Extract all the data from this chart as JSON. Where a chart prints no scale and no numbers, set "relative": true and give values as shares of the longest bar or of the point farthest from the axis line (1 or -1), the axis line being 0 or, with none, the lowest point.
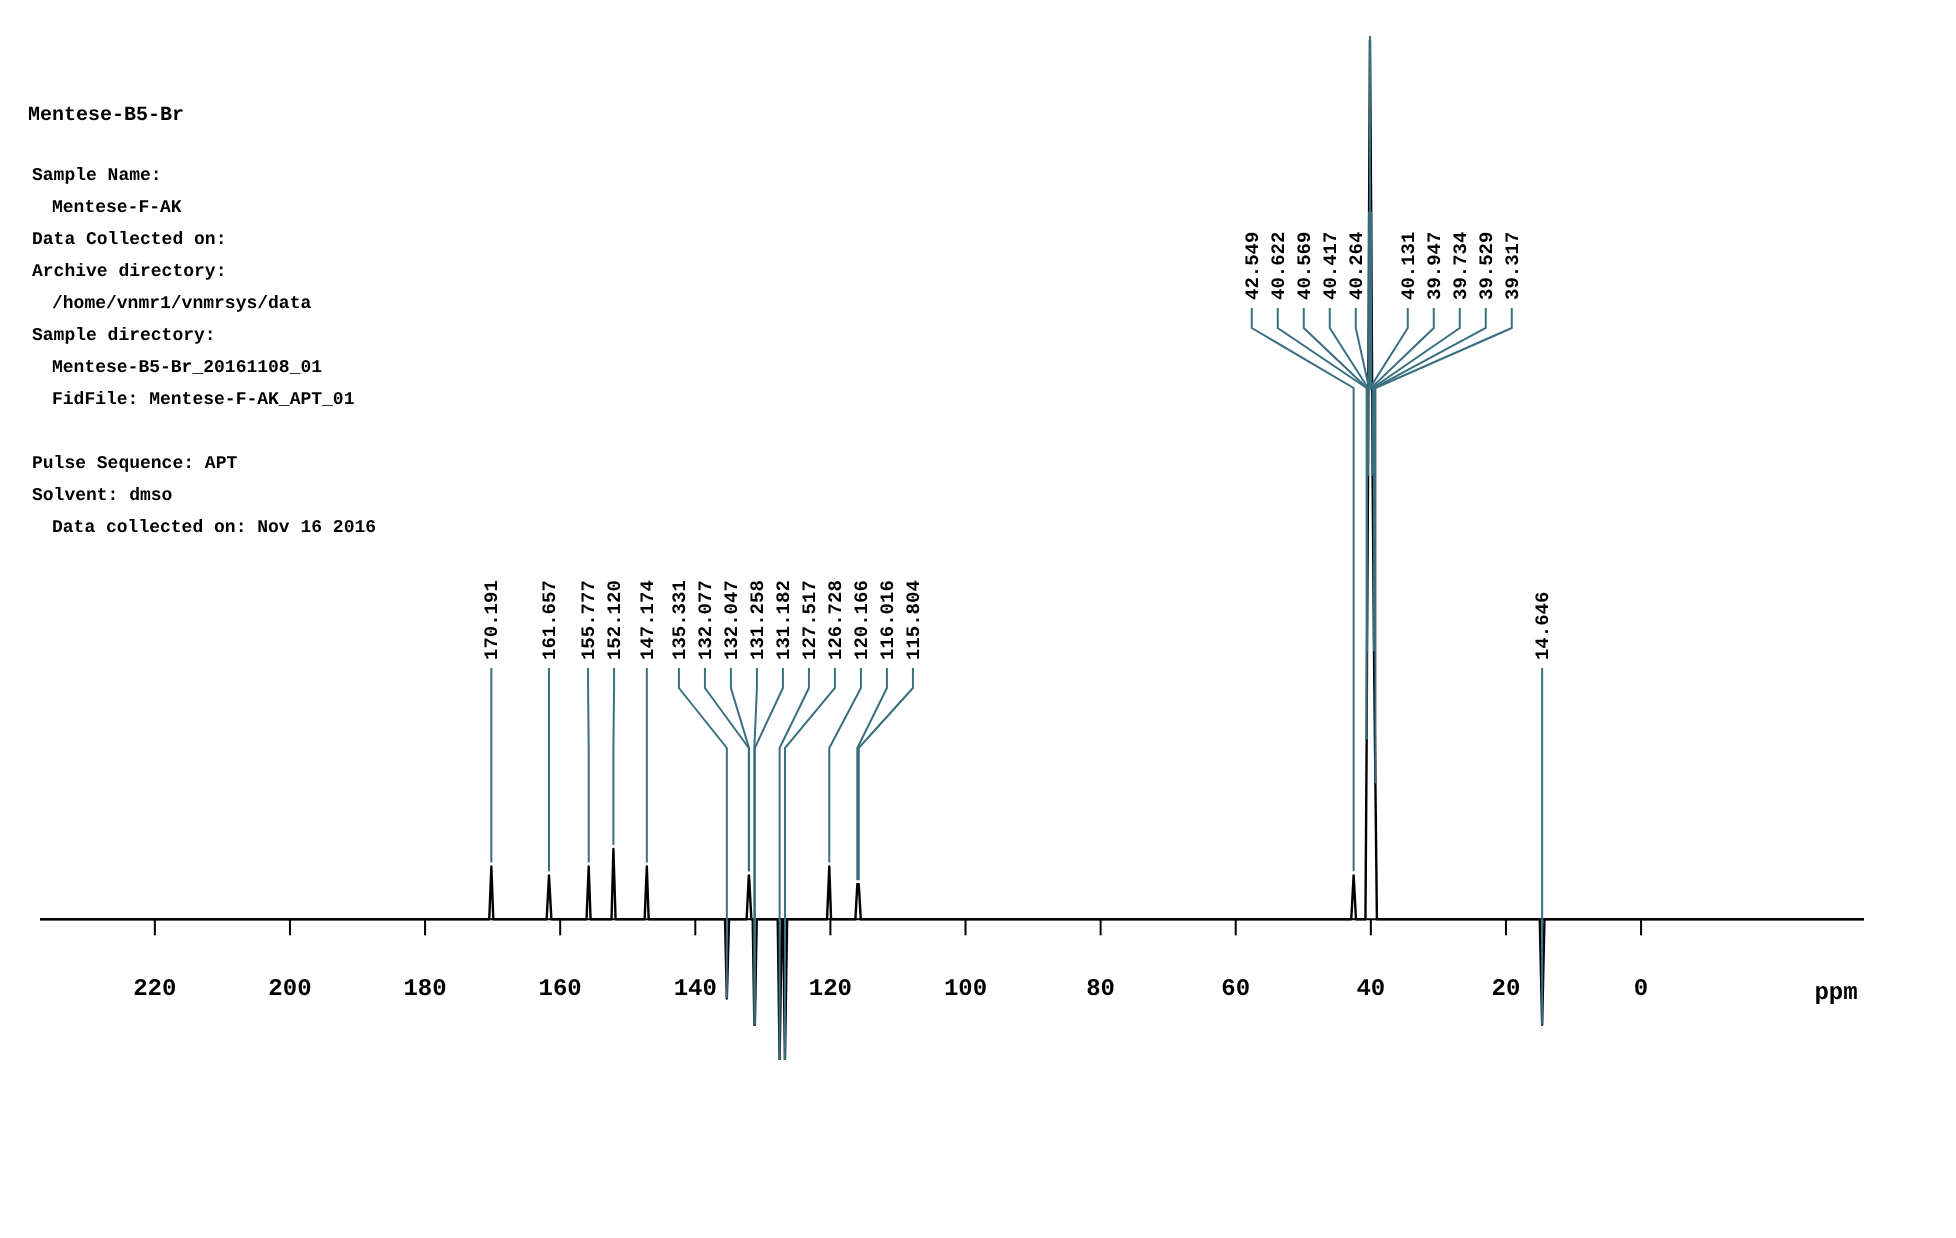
{
  "chart_data": {
    "type": "line",
    "title": "Mentese-B5-Br",
    "relative": true,
    "xlabel": "ppm",
    "xlim": [
      237,
      -33
    ],
    "xticks": [
      220,
      200,
      180,
      160,
      140,
      120,
      100,
      80,
      60,
      40,
      20,
      0
    ],
    "series": [
      {
        "color": "#000000",
        "x": [
          237,
          170.5,
          170.191,
          169.9,
          162,
          161.657,
          161.3,
          156.1,
          155.777,
          155.5,
          152.4,
          152.12,
          151.8,
          147.5,
          147.174,
          146.9,
          135.6,
          135.331,
          135.0,
          132.4,
          132.077,
          132.047,
          131.7,
          131.5,
          131.258,
          131.182,
          130.9,
          127.8,
          127.517,
          127.2,
          127.0,
          126.728,
          126.4,
          120.5,
          120.166,
          119.9,
          116.3,
          116.016,
          115.804,
          115.5,
          42.9,
          42.549,
          42.2,
          40.8,
          40.622,
          40.569,
          40.417,
          40.264,
          40.131,
          39.947,
          39.734,
          39.529,
          39.317,
          39.1,
          15.0,
          14.646,
          14.3,
          -33
        ],
        "values": [
          0,
          0,
          0.06,
          0,
          0,
          0.05,
          0,
          0,
          0.06,
          0,
          0,
          0.08,
          0,
          0,
          0.06,
          0,
          0,
          -0.09,
          0,
          0,
          0.05,
          0.05,
          0,
          0,
          -0.12,
          -0.12,
          0,
          0,
          -0.16,
          0,
          0,
          -0.16,
          0,
          0,
          0.06,
          0,
          0,
          0.04,
          0.04,
          0,
          0,
          0.05,
          0,
          0,
          0.2,
          0.3,
          0.5,
          0.8,
          1,
          0.8,
          0.5,
          0.3,
          0.15,
          0,
          0,
          -0.12,
          0,
          0
        ]
      }
    ],
    "annotations": [
      "Sample Name:",
      "Mentese-F-AK",
      "Data Collected on:",
      "Archive directory:",
      "/home/vnmr1/vnmrsys/data",
      "Sample directory:",
      "Mentese-B5-Br_20161108_01",
      "FidFile: Mentese-F-AK_APT_01",
      "Pulse Sequence: APT",
      "Solvent: dmso",
      "Data collected on: Nov 16 2016",
      {
        "text": "170.191",
        "x": 170.191,
        "y": 0.06
      },
      {
        "text": "161.657",
        "x": 161.657,
        "y": 0.05
      },
      {
        "text": "155.777",
        "x": 155.777,
        "y": 0.06
      },
      {
        "text": "152.120",
        "x": 152.12,
        "y": 0.08
      },
      {
        "text": "147.174",
        "x": 147.174,
        "y": 0.06
      },
      {
        "text": "135.331",
        "x": 135.331,
        "y": -0.09
      },
      {
        "text": "132.077",
        "x": 132.077,
        "y": 0.05
      },
      {
        "text": "132.047",
        "x": 132.047,
        "y": 0.05
      },
      {
        "text": "131.258",
        "x": 131.258,
        "y": -0.12
      },
      {
        "text": "131.182",
        "x": 131.182,
        "y": -0.12
      },
      {
        "text": "127.517",
        "x": 127.517,
        "y": -0.16
      },
      {
        "text": "126.728",
        "x": 126.728,
        "y": -0.16
      },
      {
        "text": "120.166",
        "x": 120.166,
        "y": 0.06
      },
      {
        "text": "116.016",
        "x": 116.016,
        "y": 0.04
      },
      {
        "text": "115.804",
        "x": 115.804,
        "y": 0.04
      },
      {
        "text": "42.549",
        "x": 42.549,
        "y": 0.05
      },
      {
        "text": "40.622",
        "x": 40.622,
        "y": 0.2
      },
      {
        "text": "40.569",
        "x": 40.569,
        "y": 0.3
      },
      {
        "text": "40.417",
        "x": 40.417,
        "y": 0.5
      },
      {
        "text": "40.264",
        "x": 40.264,
        "y": 0.8
      },
      {
        "text": "40.131",
        "x": 40.131,
        "y": 1
      },
      {
        "text": "39.947",
        "x": 39.947,
        "y": 0.8
      },
      {
        "text": "39.734",
        "x": 39.734,
        "y": 0.5
      },
      {
        "text": "39.529",
        "x": 39.529,
        "y": 0.3
      },
      {
        "text": "39.317",
        "x": 39.317,
        "y": 0.15
      },
      {
        "text": "14.646",
        "x": 14.646,
        "y": -0.12
      }
    ]
  }
}
